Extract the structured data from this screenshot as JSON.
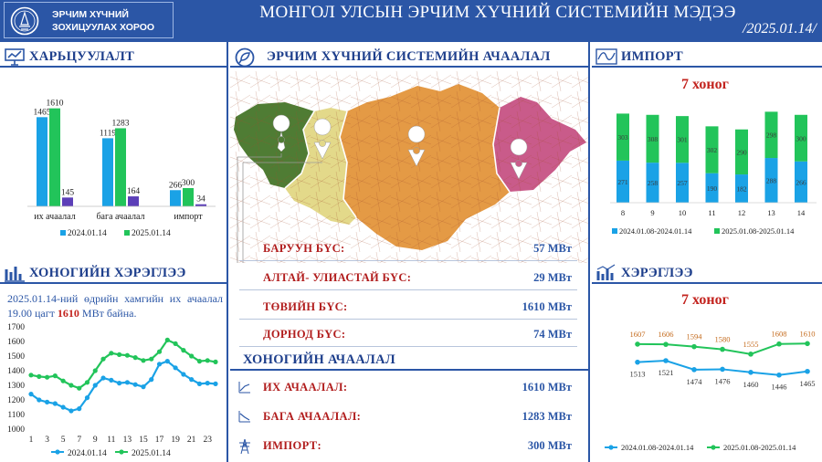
{
  "header": {
    "org_line1": "ЭРЧИМ ХҮЧНИЙ",
    "org_line2": "ЗОХИЦУУЛАХ ХОРОО",
    "title": "МОНГОЛ УЛСЫН ЭРЧИМ ХҮЧНИЙ СИСТЕМИЙН МЭДЭЭ",
    "date": "/2025.01.14/"
  },
  "colors": {
    "primary": "#2b56a6",
    "blue_series": "#1aa2e6",
    "green_series": "#22c45a",
    "purple": "#5c3fb8",
    "red_text": "#b11d1d"
  },
  "comparison": {
    "title": "ХАРЬЦУУЛАЛТ",
    "icon": "presentation-chart-icon",
    "chart_data": {
      "type": "bar",
      "categories": [
        "их ачаалал",
        "бага ачаалал",
        "импорт"
      ],
      "series": [
        {
          "name": "2024.01.14",
          "values": [
            1465,
            1119,
            266
          ]
        },
        {
          "name": "2025.01.14",
          "values": [
            1610,
            1283,
            300
          ]
        },
        {
          "name": "",
          "values": [
            145,
            164,
            34
          ]
        }
      ],
      "legend": "bottom",
      "ylim": [
        0,
        1800
      ]
    }
  },
  "map_panel": {
    "title": "ЭРЧИМ ХҮЧНИЙ СИСТЕМИЙН АЧААЛАЛ",
    "icon": "energy-system-icon",
    "regions": [
      {
        "name": "БАРУУН БҮС:",
        "value": "57 МВт",
        "color": "#4f7c34"
      },
      {
        "name": "АЛТАЙ- УЛИАСТАЙ БҮС:",
        "value": "29 МВт",
        "color": "#e3d98a"
      },
      {
        "name": "ТӨВИЙН БҮС:",
        "value": "1610 МВт",
        "color": "#e49a45"
      },
      {
        "name": "ДОРНОД БҮС:",
        "value": "74 МВт",
        "color": "#c95b8a"
      }
    ]
  },
  "import_panel": {
    "title": "ИМПОРТ",
    "icon": "line-wave-icon",
    "subtitle": "7 хоног",
    "chart_data": {
      "type": "bar",
      "stacked": true,
      "categories": [
        "8",
        "9",
        "10",
        "11",
        "12",
        "13",
        "14"
      ],
      "series": [
        {
          "name": "2024.01.08-2024.01.14",
          "values": [
            271,
            258,
            257,
            190,
            182,
            288,
            266
          ]
        },
        {
          "name": "2025.01.08-2025.01.14",
          "values": [
            303,
            308,
            301,
            302,
            290,
            298,
            300
          ]
        }
      ],
      "legend": "bottom"
    }
  },
  "daily_consumption": {
    "title": "ХОНОГИЙН ХЭРЭГЛЭЭ",
    "icon": "bar-chart-icon",
    "description_pre": "2025.01.14-ний өдрийн хамгийн их ачаалал 19.00 цагт ",
    "description_value": "1610",
    "description_post": " МВт байна.",
    "chart_data": {
      "type": "line",
      "x_ticks": [
        "1",
        "3",
        "5",
        "7",
        "9",
        "11",
        "13",
        "15",
        "17",
        "19",
        "21",
        "23"
      ],
      "x": [
        1,
        2,
        3,
        4,
        5,
        6,
        7,
        8,
        9,
        10,
        11,
        12,
        13,
        14,
        15,
        16,
        17,
        18,
        19,
        20,
        21,
        22,
        23,
        24
      ],
      "y_ticks": [
        "1000",
        "1100",
        "1200",
        "1300",
        "1400",
        "1500",
        "1600",
        "1700"
      ],
      "ylim": [
        1000,
        1700
      ],
      "series": [
        {
          "name": "2024.01.14",
          "values": [
            1240,
            1200,
            1185,
            1175,
            1150,
            1125,
            1140,
            1215,
            1300,
            1350,
            1335,
            1315,
            1320,
            1305,
            1290,
            1340,
            1445,
            1465,
            1420,
            1375,
            1340,
            1310,
            1315,
            1310
          ]
        },
        {
          "name": "2025.01.14",
          "values": [
            1370,
            1360,
            1355,
            1365,
            1330,
            1300,
            1280,
            1320,
            1400,
            1480,
            1520,
            1510,
            1505,
            1490,
            1470,
            1480,
            1530,
            1610,
            1585,
            1540,
            1500,
            1465,
            1470,
            1460
          ]
        }
      ],
      "legend": "bottom"
    }
  },
  "daily_load": {
    "title": "ХОНОГИЙН АЧААЛАЛ",
    "items": [
      {
        "name": "ИХ АЧААЛАЛ:",
        "value": "1610 МВт",
        "icon": "trend-up-icon"
      },
      {
        "name": "БАГА АЧААЛАЛ:",
        "value": "1283 МВт",
        "icon": "trend-down-icon"
      },
      {
        "name": "ИМПОРТ:",
        "value": "300 МВт",
        "icon": "power-tower-icon"
      }
    ]
  },
  "consumption_panel": {
    "title": "ХЭРЭГЛЭЭ",
    "icon": "bar-chart-icon",
    "subtitle": "7 хоног",
    "chart_data": {
      "type": "line",
      "categories": [
        "8",
        "9",
        "10",
        "11",
        "12",
        "13",
        "14"
      ],
      "series": [
        {
          "name": "2024.01.08-2024.01.14",
          "values": [
            1513,
            1521,
            1474,
            1476,
            1460,
            1446,
            1465
          ]
        },
        {
          "name": "2025.01.08-2025.01.14",
          "values": [
            1607,
            1606,
            1594,
            1580,
            1555,
            1608,
            1610
          ]
        }
      ],
      "legend": "bottom"
    }
  }
}
